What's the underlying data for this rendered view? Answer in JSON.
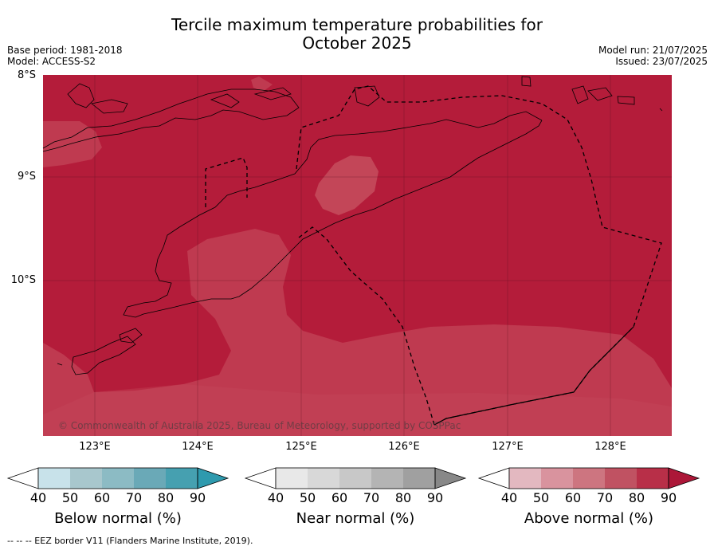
{
  "title_line1": "Tercile maximum temperature probabilities for",
  "title_line2": "October 2025",
  "base_period": "Base period: 1981-2018",
  "model": "Model: ACCESS-S2",
  "model_run": "Model run: 21/07/2025",
  "issued": "Issued: 23/07/2025",
  "lat_labels": [
    "8°S",
    "9°S",
    "10°S"
  ],
  "lon_labels": [
    "123°E",
    "124°E",
    "125°E",
    "126°E",
    "127°E",
    "128°E"
  ],
  "copyright": "© Commonwealth of Australia 2025, Bureau of Meteorology, supported by COSPPac",
  "colors": {
    "above_80_90": "#b41c3a",
    "above_70_80": "#bf3a50",
    "coast": "#000000"
  },
  "colorbars": [
    {
      "title": "Below normal (%)",
      "ticks": [
        "40",
        "50",
        "60",
        "70",
        "80",
        "90"
      ],
      "colors": [
        "#ffffff",
        "#c8e2ea",
        "#a8c7cd",
        "#8cbbc4",
        "#6aa9b7",
        "#46a0b0",
        "#2e9aae"
      ]
    },
    {
      "title": "Near normal (%)",
      "ticks": [
        "40",
        "50",
        "60",
        "70",
        "80",
        "90"
      ],
      "colors": [
        "#ffffff",
        "#e8e8e8",
        "#d8d8d8",
        "#c8c8c8",
        "#b4b4b4",
        "#a0a0a0",
        "#888888"
      ]
    },
    {
      "title": "Above normal (%)",
      "ticks": [
        "40",
        "50",
        "60",
        "70",
        "80",
        "90"
      ],
      "colors": [
        "#ffffff",
        "#e3b8c0",
        "#d9939e",
        "#cd7580",
        "#c05262",
        "#b82f48",
        "#ac1738"
      ]
    }
  ],
  "footnote": "--  --  -- EEZ border V11 (Flanders Marine Institute, 2019)."
}
